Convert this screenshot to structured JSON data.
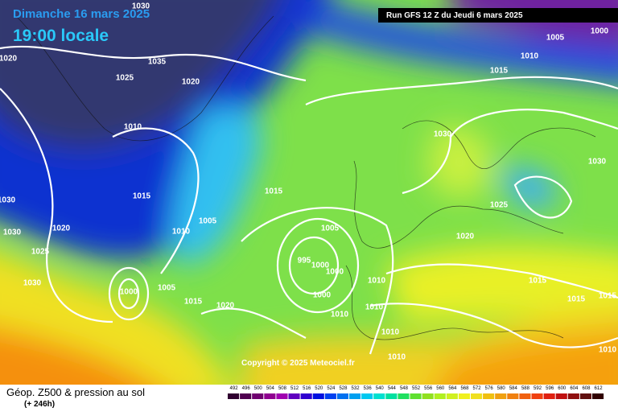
{
  "header": {
    "date": "Dimanche 16 mars 2025",
    "time": "19:00 locale",
    "run": "Run GFS 12 Z du Jeudi 6 mars 2025"
  },
  "isobar_labels": [
    "1030",
    "1020",
    "1035",
    "1025",
    "1020",
    "1010",
    "1015",
    "1030",
    "1030",
    "1020",
    "1025",
    "1010",
    "1005",
    "1015",
    "1030",
    "1000",
    "1005",
    "1015",
    "1020",
    "995",
    "1000",
    "1000",
    "1005",
    "1000",
    "1010",
    "1010",
    "1010",
    "1010",
    "1010",
    "1020",
    "1025",
    "1030",
    "1015",
    "1010",
    "1005",
    "1000",
    "1030",
    "1015",
    "1015",
    "1015",
    "1010"
  ],
  "copyright": "Copyright © 2025 Meteociel.fr",
  "footer": {
    "title": "Géop. Z500 & pression au sol",
    "lead": "(+ 246h)"
  },
  "legend": {
    "labels": [
      492,
      496,
      500,
      504,
      508,
      512,
      516,
      520,
      524,
      528,
      532,
      536,
      540,
      544,
      548,
      552,
      556,
      560,
      564,
      568,
      572,
      576,
      580,
      584,
      588,
      592,
      596,
      600,
      604,
      608,
      612
    ]
  }
}
